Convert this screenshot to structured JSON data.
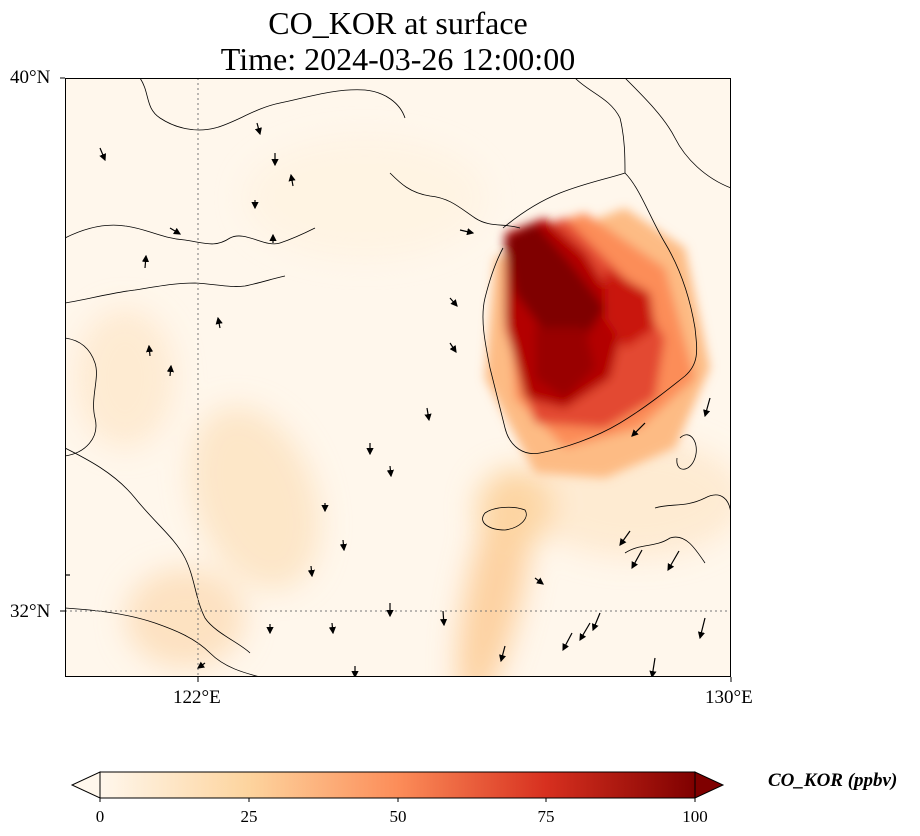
{
  "title": {
    "line1": "CO_KOR at surface",
    "line2": "Time: 2024-03-26 12:00:00"
  },
  "axes": {
    "lat_labels": [
      "40°N",
      "32°N"
    ],
    "lon_labels": [
      "122°E",
      "130°E"
    ],
    "lon_range": [
      120,
      130
    ],
    "lat_range": [
      31,
      40
    ],
    "gridlines": "dotted at 122°E and 32°N"
  },
  "colorbar": {
    "label": "CO_KOR (ppbv)",
    "ticks": [
      "0",
      "25",
      "50",
      "75",
      "100"
    ],
    "range": [
      0,
      100
    ],
    "extend": "both",
    "colormap": "OrRd",
    "colors": [
      "#fff7ec",
      "#fdd49e",
      "#fc8d59",
      "#d7301f",
      "#7f0000"
    ]
  },
  "chart_data": {
    "type": "heatmap",
    "variable": "CO_KOR",
    "units": "ppbv",
    "title": "CO_KOR at surface",
    "subtitle": "Time: 2024-03-26 12:00:00",
    "xlim": [
      120,
      130
    ],
    "ylim": [
      31,
      40
    ],
    "high_concentration_region": "Korean peninsula, values near 100 ppbv",
    "overlay": "wind vectors"
  }
}
